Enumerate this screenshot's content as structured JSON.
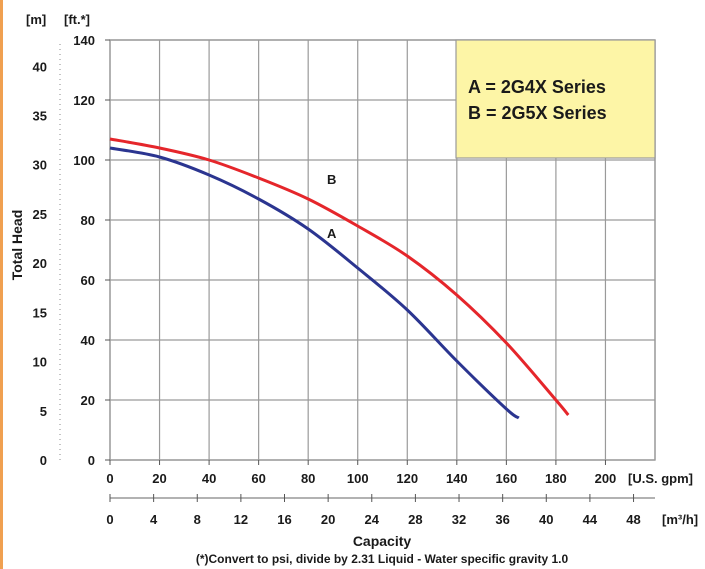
{
  "chart_data": {
    "type": "line",
    "title": "",
    "xlabel": "Capacity",
    "ylabel": "Total Head",
    "x_primary": {
      "unit": "[U.S. gpm]",
      "range": [
        0,
        220
      ],
      "ticks": [
        "0",
        "20",
        "40",
        "60",
        "80",
        "100",
        "120",
        "140",
        "160",
        "180",
        "200"
      ]
    },
    "x_secondary": {
      "unit": "[m³/h]",
      "ticks": [
        "0",
        "4",
        "8",
        "12",
        "16",
        "20",
        "24",
        "28",
        "32",
        "36",
        "40",
        "44",
        "48"
      ]
    },
    "y_primary": {
      "unit": "[ft.*]",
      "range": [
        0,
        140
      ],
      "ticks": [
        "0",
        "20",
        "40",
        "60",
        "80",
        "100",
        "120",
        "140"
      ]
    },
    "y_secondary": {
      "unit": "[m]",
      "ticks": [
        "0",
        "5",
        "10",
        "15",
        "20",
        "25",
        "30",
        "35",
        "40"
      ]
    },
    "grid": true,
    "legend": {
      "placement": "top-right",
      "lines": [
        "A = 2G4X Series",
        "B = 2G5X Series"
      ]
    },
    "series": [
      {
        "name": "A",
        "x": [
          0,
          20,
          40,
          60,
          80,
          100,
          120,
          140,
          160,
          165
        ],
        "y": [
          104,
          101,
          95,
          87,
          77,
          64,
          50,
          33,
          17,
          14
        ]
      },
      {
        "name": "B",
        "x": [
          0,
          20,
          40,
          60,
          80,
          100,
          120,
          140,
          160,
          180,
          185
        ],
        "y": [
          107,
          104,
          100,
          94,
          87,
          78,
          68,
          55,
          39,
          20,
          15
        ]
      }
    ],
    "footnote": "(*)Convert to psi, divide by 2.31     Liquid - Water specific gravity 1.0",
    "colors": {
      "A": "#2b3590",
      "B": "#e5262b",
      "grid": "#9a9a9a",
      "legend_bg": "#fdf5a6",
      "accent": "#f0a050"
    }
  }
}
